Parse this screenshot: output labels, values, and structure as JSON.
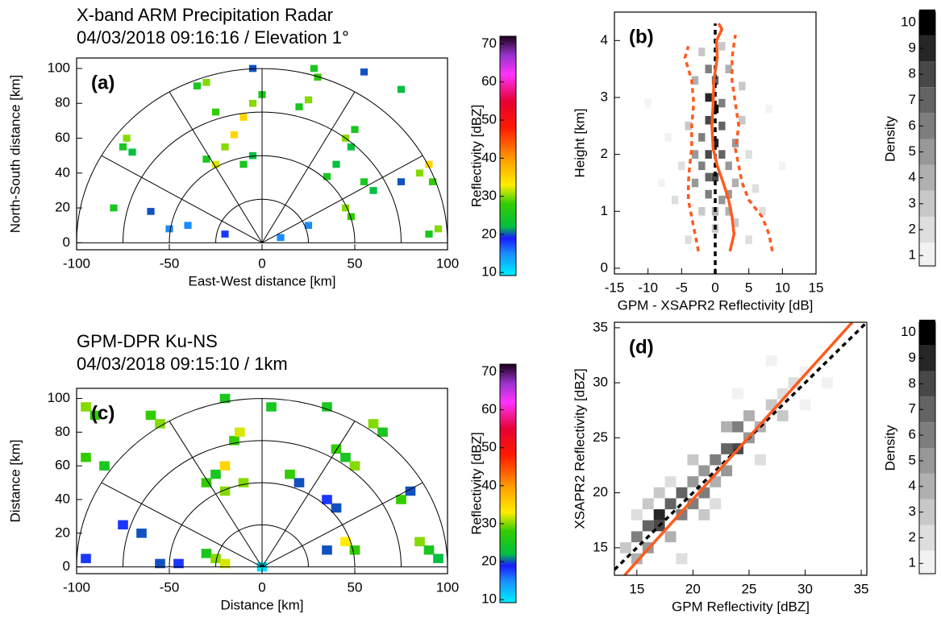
{
  "chart_data": [
    {
      "type": "ppi",
      "title": [
        "X-band ARM Precipitation Radar",
        "04/03/2018 09:16:16 / Elevation 1°"
      ],
      "label": "(a)",
      "xlabel": "East-West distance [km]",
      "ylabel": "North-South distance [km]",
      "xlim": [
        -100,
        100
      ],
      "ylim": [
        -4,
        106
      ],
      "xticks": [
        -100,
        -50,
        0,
        50,
        100
      ],
      "yticks": [
        0,
        20,
        40,
        60,
        80,
        100
      ],
      "range_rings": [
        25,
        50,
        75,
        100
      ],
      "spoke_angles": [
        0,
        30,
        60,
        90,
        120,
        150,
        180
      ],
      "x": [
        -75,
        -73,
        -70,
        -80,
        -60,
        -35,
        -30,
        -25,
        -10,
        -5,
        0,
        -20,
        -15,
        -30,
        -25,
        -5,
        -10,
        20,
        25,
        30,
        28,
        45,
        50,
        48,
        40,
        35,
        55,
        60,
        45,
        48,
        75,
        85,
        90,
        92,
        95,
        90,
        -40,
        -50,
        -20,
        10,
        25,
        -5,
        55,
        75
      ],
      "y": [
        55,
        60,
        52,
        20,
        18,
        90,
        92,
        75,
        72,
        80,
        85,
        55,
        62,
        48,
        45,
        50,
        45,
        78,
        82,
        95,
        100,
        60,
        65,
        55,
        45,
        38,
        35,
        30,
        20,
        15,
        35,
        40,
        45,
        35,
        8,
        5,
        10,
        8,
        5,
        3,
        10,
        100,
        98,
        88
      ],
      "values": [
        25,
        30,
        22,
        25,
        20,
        25,
        30,
        28,
        35,
        30,
        25,
        30,
        35,
        25,
        32,
        22,
        25,
        25,
        30,
        28,
        25,
        30,
        25,
        22,
        22,
        25,
        25,
        22,
        30,
        28,
        20,
        30,
        35,
        28,
        30,
        25,
        15,
        15,
        18,
        15,
        15,
        20,
        20,
        22
      ],
      "colorbar": {
        "label": "Reflectivity [dBZ]",
        "lim": [
          9.2,
          72
        ],
        "ticks": [
          10,
          20,
          30,
          40,
          50,
          60,
          70
        ],
        "colormap": [
          {
            "value": 10,
            "color": "#00e5ff"
          },
          {
            "value": 15,
            "color": "#1a8cff"
          },
          {
            "value": 19,
            "color": "#1a1aff"
          },
          {
            "value": 22,
            "color": "#00c040"
          },
          {
            "value": 28,
            "color": "#33cc00"
          },
          {
            "value": 33,
            "color": "#ffee00"
          },
          {
            "value": 40,
            "color": "#ff9900"
          },
          {
            "value": 48,
            "color": "#ff1a00"
          },
          {
            "value": 55,
            "color": "#e60033"
          },
          {
            "value": 62,
            "color": "#ff33ff"
          },
          {
            "value": 67,
            "color": "#9933cc"
          },
          {
            "value": 72,
            "color": "#1a001a"
          }
        ]
      }
    },
    {
      "type": "heatmap",
      "label": "(b)",
      "xlabel": "GPM - XSAPR2 Reflectivity [dB]",
      "ylabel": "Height [km]",
      "xlim": [
        -15,
        15
      ],
      "ylim": [
        -0.1,
        4.5
      ],
      "xticks": [
        -15,
        -10,
        -5,
        0,
        5,
        10,
        15
      ],
      "yticks": [
        0,
        1,
        2,
        3,
        4
      ],
      "x": [
        -1,
        0,
        -1,
        0,
        -1,
        1,
        -2,
        0,
        -1,
        1,
        -2,
        2,
        0,
        -3,
        3,
        -1,
        1,
        2,
        -2,
        3,
        0,
        -4,
        4,
        5,
        -5,
        6,
        -6,
        4,
        -3,
        2,
        -2,
        1,
        7,
        -7,
        8,
        -8,
        10,
        -10,
        5,
        -4,
        3,
        -3,
        1,
        -1,
        0,
        2
      ],
      "y": [
        3.5,
        3.3,
        3.0,
        2.8,
        2.6,
        2.5,
        2.3,
        2.2,
        2.0,
        2.0,
        1.8,
        1.8,
        1.6,
        1.5,
        1.5,
        1.3,
        1.2,
        1.0,
        1.0,
        0.8,
        0.7,
        2.5,
        2.6,
        2.0,
        1.8,
        1.4,
        1.2,
        3.2,
        3.3,
        3.5,
        3.8,
        3.9,
        1.0,
        2.3,
        2.8,
        1.5,
        1.8,
        2.9,
        0.5,
        0.5,
        2.2,
        2.0,
        2.9,
        1.6,
        1.0,
        1.3
      ],
      "values": [
        6,
        7,
        9,
        10,
        8,
        7,
        6,
        9,
        8,
        7,
        6,
        5,
        8,
        5,
        4,
        6,
        5,
        4,
        3,
        3,
        3,
        3,
        3,
        2,
        2,
        2,
        2,
        3,
        4,
        4,
        3,
        3,
        2,
        1,
        1,
        1,
        1,
        1,
        2,
        2,
        5,
        5,
        6,
        7,
        4,
        5
      ],
      "series": [
        {
          "color": "#000000",
          "dash": true,
          "x": [
            0,
            0
          ],
          "y": [
            -0.1,
            4.3
          ]
        },
        {
          "color": "#ff5a1f",
          "dash": false,
          "x": [
            2.2,
            2.8,
            2.5,
            2.0,
            1.2,
            0.3,
            -0.3,
            -0.5,
            -0.3,
            -0.2,
            0.3,
            0.2,
            1.0,
            0.5
          ],
          "y": [
            0.3,
            0.6,
            0.9,
            1.2,
            1.5,
            1.8,
            2.1,
            2.5,
            2.9,
            3.3,
            3.7,
            4.0,
            4.2,
            4.3
          ]
        },
        {
          "color": "#ff5a1f",
          "dash": true,
          "x": [
            -2.5,
            -3,
            -3.5,
            -4,
            -4,
            -3.8,
            -3.5,
            -3.5,
            -3.2,
            -3.5,
            -4.5,
            -4
          ],
          "y": [
            0.3,
            0.6,
            0.9,
            1.2,
            1.5,
            1.8,
            2.1,
            2.5,
            2.9,
            3.3,
            3.7,
            3.9
          ]
        },
        {
          "color": "#ff5a1f",
          "dash": true,
          "x": [
            8.5,
            8,
            7,
            5,
            4,
            3.5,
            3,
            3.5,
            3,
            2.5,
            2.5,
            3
          ],
          "y": [
            0.3,
            0.6,
            0.9,
            1.2,
            1.5,
            1.8,
            2.1,
            2.5,
            2.9,
            3.3,
            3.7,
            4.1
          ]
        }
      ],
      "colorbar": {
        "label": "Density",
        "lim": [
          0.6,
          10.4
        ],
        "ticks": [
          1,
          2,
          3,
          4,
          5,
          6,
          7,
          8,
          9,
          10
        ],
        "colors": [
          "#f2f2f2",
          "#dedede",
          "#c8c8c8",
          "#b0b0b0",
          "#989898",
          "#7e7e7e",
          "#646464",
          "#484848",
          "#262626",
          "#000000"
        ]
      }
    },
    {
      "type": "ppi",
      "title": [
        "GPM-DPR Ku-NS",
        "04/03/2018 09:15:10 / 1km"
      ],
      "label": "(c)",
      "xlabel": "Distance [km]",
      "ylabel": "Distance [km]",
      "xlim": [
        -100,
        100
      ],
      "ylim": [
        -4,
        106
      ],
      "xticks": [
        -100,
        -50,
        0,
        50,
        100
      ],
      "yticks": [
        0,
        20,
        40,
        60,
        80,
        100
      ],
      "range_rings": [
        25,
        50,
        75,
        100
      ],
      "spoke_angles": [
        0,
        30,
        60,
        90,
        120,
        150,
        180
      ],
      "x": [
        -95,
        -90,
        -95,
        -85,
        -60,
        -55,
        -75,
        -65,
        -95,
        -55,
        -45,
        -30,
        -25,
        -20,
        -30,
        -25,
        -20,
        -20,
        -10,
        -15,
        -12,
        -20,
        5,
        15,
        20,
        35,
        40,
        45,
        50,
        35,
        40,
        35,
        45,
        50,
        60,
        65,
        75,
        80,
        85,
        90,
        95,
        0
      ],
      "y": [
        95,
        90,
        65,
        60,
        90,
        85,
        25,
        20,
        5,
        2,
        2,
        8,
        5,
        2,
        50,
        55,
        45,
        60,
        50,
        75,
        80,
        100,
        95,
        55,
        50,
        95,
        70,
        65,
        60,
        40,
        35,
        10,
        15,
        10,
        85,
        80,
        40,
        45,
        15,
        10,
        5,
        0
      ],
      "values": [
        30,
        28,
        28,
        25,
        28,
        30,
        18,
        20,
        18,
        20,
        18,
        25,
        30,
        32,
        28,
        25,
        30,
        35,
        30,
        28,
        32,
        25,
        25,
        28,
        20,
        25,
        28,
        25,
        30,
        18,
        20,
        20,
        33,
        28,
        30,
        25,
        28,
        20,
        30,
        25,
        22,
        10
      ],
      "colorbar": {
        "label": "Reflectivity [dBZ]",
        "lim": [
          9.2,
          72
        ],
        "ticks": [
          10,
          20,
          30,
          40,
          50,
          60,
          70
        ],
        "colormap": [
          {
            "value": 10,
            "color": "#00e5ff"
          },
          {
            "value": 15,
            "color": "#1a8cff"
          },
          {
            "value": 19,
            "color": "#1a1aff"
          },
          {
            "value": 22,
            "color": "#00c040"
          },
          {
            "value": 28,
            "color": "#33cc00"
          },
          {
            "value": 33,
            "color": "#ffee00"
          },
          {
            "value": 40,
            "color": "#ff9900"
          },
          {
            "value": 48,
            "color": "#ff1a00"
          },
          {
            "value": 55,
            "color": "#e60033"
          },
          {
            "value": 62,
            "color": "#ff33ff"
          },
          {
            "value": 67,
            "color": "#9933cc"
          },
          {
            "value": 72,
            "color": "#1a001a"
          }
        ]
      }
    },
    {
      "type": "heatmap",
      "label": "(d)",
      "xlabel": "GPM Reflectivity [dBZ]",
      "ylabel": "XSAPR2 Reflectivity [dBZ]",
      "xlim": [
        13,
        35.5
      ],
      "ylim": [
        12.5,
        35.5
      ],
      "xticks": [
        15,
        20,
        25,
        30,
        35
      ],
      "yticks": [
        15,
        20,
        25,
        30,
        35
      ],
      "x": [
        15,
        16,
        17,
        17,
        18,
        16,
        15,
        19,
        19,
        20,
        20,
        21,
        21,
        22,
        22,
        23,
        23,
        24,
        24,
        25,
        25,
        26,
        27,
        28,
        28,
        29,
        30,
        14,
        18,
        17,
        20,
        22,
        26,
        30,
        32,
        19,
        24,
        27,
        16,
        21,
        23,
        18,
        15
      ],
      "y": [
        16,
        17,
        17,
        18,
        19,
        15,
        14,
        18,
        20,
        19,
        21,
        20,
        22,
        23,
        21,
        24,
        22,
        24,
        26,
        25,
        27,
        26,
        28,
        27,
        29,
        30,
        31,
        15,
        16,
        20,
        23,
        19,
        23,
        28,
        30,
        14,
        29,
        32,
        19,
        18,
        26,
        21,
        18
      ],
      "values": [
        6,
        7,
        8,
        9,
        7,
        5,
        4,
        6,
        7,
        6,
        5,
        6,
        5,
        6,
        4,
        7,
        5,
        8,
        6,
        5,
        4,
        4,
        3,
        3,
        2,
        2,
        1,
        3,
        4,
        3,
        3,
        2,
        2,
        1,
        1,
        2,
        1,
        1,
        3,
        3,
        4,
        2,
        2
      ],
      "series": [
        {
          "color": "#000000",
          "dash": true,
          "x": [
            13,
            35.5
          ],
          "y": [
            13,
            35.5
          ]
        },
        {
          "color": "#ff5a1f",
          "dash": false,
          "x": [
            13.9,
            34.2
          ],
          "y": [
            12.5,
            35.5
          ]
        }
      ],
      "colorbar": {
        "label": "Density",
        "lim": [
          0.6,
          10.4
        ],
        "ticks": [
          1,
          2,
          3,
          4,
          5,
          6,
          7,
          8,
          9,
          10
        ],
        "colors": [
          "#f2f2f2",
          "#dedede",
          "#c8c8c8",
          "#b0b0b0",
          "#989898",
          "#7e7e7e",
          "#646464",
          "#484848",
          "#262626",
          "#000000"
        ]
      }
    }
  ]
}
